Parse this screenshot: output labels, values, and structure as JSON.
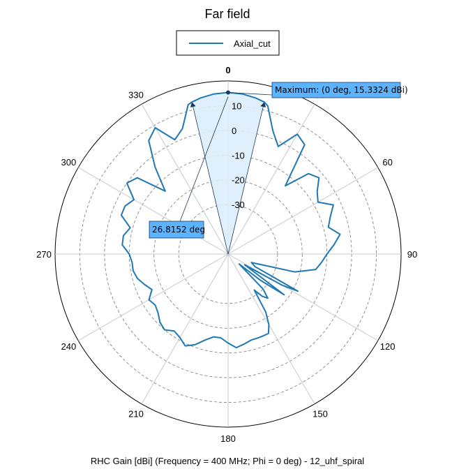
{
  "chart_data": {
    "type": "polar-line",
    "title": "Far field",
    "caption": "RHC Gain [dBi] (Frequency = 400 MHz; Phi = 0 deg) - 12_uhf_spiral",
    "rlim": [
      -50,
      20
    ],
    "radial_ticks": [
      10,
      0,
      -10,
      -20,
      -30
    ],
    "radial_tick_labels": [
      "10",
      "0",
      "-10",
      "-20",
      "-30"
    ],
    "angle_ticks": [
      0,
      30,
      60,
      90,
      120,
      150,
      180,
      210,
      240,
      270,
      300,
      330
    ],
    "angle_tick_labels": [
      "0",
      "30",
      "60",
      "90",
      "120",
      "150",
      "180",
      "210",
      "240",
      "270",
      "300",
      "330"
    ],
    "angle_zero": "top",
    "angle_direction": "clockwise",
    "grid": true,
    "legend_position": "top-center",
    "series": [
      {
        "name": "Axial_cut",
        "color": "#1f77b4",
        "theta_deg": [
          0,
          5,
          10,
          13.4,
          15,
          20,
          25,
          30,
          35,
          40,
          45,
          50,
          55,
          60,
          65,
          70,
          75,
          80,
          85,
          90,
          95,
          100,
          105,
          110,
          115,
          118,
          120,
          123,
          126,
          129,
          132,
          135,
          138,
          141,
          144,
          147,
          150,
          153,
          156,
          159,
          162,
          165,
          170,
          175,
          180,
          185,
          190,
          195,
          200,
          205,
          210,
          215,
          220,
          225,
          230,
          235,
          240,
          245,
          250,
          255,
          260,
          265,
          270,
          275,
          280,
          285,
          290,
          295,
          300,
          305,
          310,
          315,
          320,
          325,
          330,
          335,
          340,
          345,
          346.6,
          350,
          355,
          360
        ],
        "gain_dbi": [
          15.33,
          15.0,
          14.1,
          13.2,
          12.0,
          3.0,
          -2.0,
          6.0,
          4.0,
          -14.0,
          -4.0,
          -2.0,
          -6.0,
          -8.0,
          -3.0,
          -6.0,
          -8.0,
          -4.0,
          -7.0,
          -10.0,
          -12.0,
          -14.0,
          -22.0,
          -40.0,
          -38.0,
          -18.0,
          -25.0,
          -42.0,
          -22.0,
          -33.0,
          -44.0,
          -30.0,
          -26.0,
          -28.0,
          -32.0,
          -22.0,
          -17.0,
          -14.0,
          -14.0,
          -14.0,
          -14.0,
          -14.0,
          -13.0,
          -12.0,
          -14.0,
          -16.0,
          -16.0,
          -14.0,
          -11.0,
          -9.0,
          -11.0,
          -12.0,
          -10.0,
          -11.0,
          -13.0,
          -14.0,
          -13.0,
          -16.0,
          -14.0,
          -12.0,
          -11.0,
          -11.0,
          -10.0,
          -7.0,
          -7.0,
          -9.0,
          -4.0,
          -4.0,
          -6.0,
          0.0,
          -2.0,
          -14.0,
          -4.0,
          6.0,
          9.0,
          1.0,
          4.0,
          12.5,
          13.2,
          14.1,
          15.0,
          15.33
        ]
      }
    ],
    "annotations": {
      "maximum": {
        "text": "Maximum: (0 deg, 15.3324 dBi)",
        "theta_deg": 0,
        "value": 15.3324
      },
      "beamwidth": {
        "text": "26.8152 deg",
        "theta_start_deg": -13.4,
        "theta_end_deg": 13.4,
        "value": 26.8152
      }
    }
  }
}
